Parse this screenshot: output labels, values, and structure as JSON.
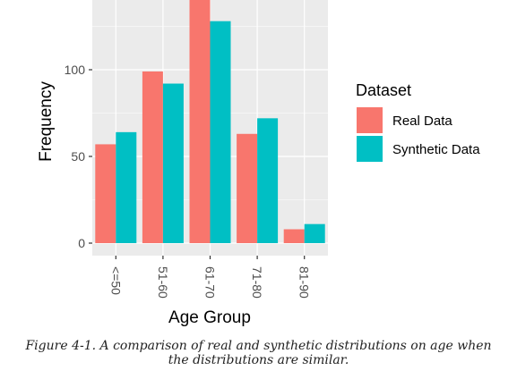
{
  "chart_data": {
    "type": "bar",
    "categories": [
      "<=50",
      "51-60",
      "61-70",
      "71-80",
      "81-90"
    ],
    "series": [
      {
        "name": "Real Data",
        "values": [
          57,
          99,
          142,
          63,
          8
        ],
        "color": "#F8766D"
      },
      {
        "name": "Synthetic Data",
        "values": [
          64,
          92,
          128,
          72,
          11
        ],
        "color": "#00BFC4"
      }
    ],
    "xlabel": "Age Group",
    "ylabel": "Frequency",
    "ylim": [
      -7,
      142
    ],
    "yticks": [
      0,
      50,
      100
    ],
    "grid": true,
    "panel_background": "#EBEBEB",
    "grid_color": "#FFFFFF",
    "legend_title": "Dataset",
    "legend_position": "right",
    "x_tick_label_rotation": "vertical, reading top-to-bottom"
  },
  "caption": "Figure 4-1. A comparison of real and synthetic distributions on age when the distributions are similar."
}
